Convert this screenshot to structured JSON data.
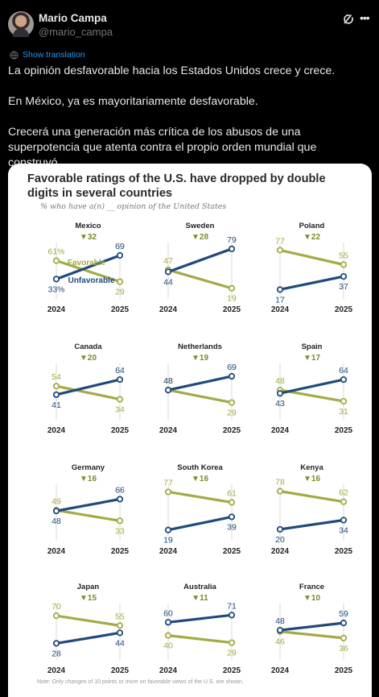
{
  "tweet": {
    "author_name": "Mario Campa",
    "author_handle": "@mario_campa",
    "translate_label": "Show translation",
    "paragraphs": [
      "La opinión desfavorable hacia los Estados Unidos crece y crece.",
      "En México, ya es mayoritariamente desfavorable.",
      "Crecerá una generación más crítica de los abusos de una superpotencia que atenta contra el propio orden mundial que construyó."
    ]
  },
  "icons": {
    "grok": "grok-icon",
    "more": "more-icon",
    "translate": "globe-icon"
  },
  "colors": {
    "favorable": "#1f4a7c",
    "unfavorable": "#a4ab45",
    "drop_marker": "#7d8a2c",
    "link": "#1d9bf0"
  },
  "chart_data": {
    "type": "line",
    "title": "Favorable ratings of the U.S. have dropped by double digits in several countries",
    "subtitle": "% who have a(n) __ opinion of the United States",
    "x": [
      "2024",
      "2025"
    ],
    "series_labels": {
      "favorable": "Favorable",
      "unfavorable": "Unfavorable"
    },
    "panels": [
      {
        "country": "Mexico",
        "drop": "▼32",
        "favorable": [
          61,
          29
        ],
        "unfavorable": [
          33,
          69
        ],
        "fav_first_label": "61%",
        "unfav_first_label": "33%"
      },
      {
        "country": "Sweden",
        "drop": "▼28",
        "favorable": [
          47,
          19
        ],
        "unfavorable": [
          44,
          79
        ]
      },
      {
        "country": "Poland",
        "drop": "▼22",
        "favorable": [
          77,
          55
        ],
        "unfavorable": [
          17,
          37
        ]
      },
      {
        "country": "Canada",
        "drop": "▼20",
        "favorable": [
          54,
          34
        ],
        "unfavorable": [
          41,
          64
        ]
      },
      {
        "country": "Netherlands",
        "drop": "▼19",
        "favorable": [
          48,
          29
        ],
        "unfavorable": [
          48,
          69
        ]
      },
      {
        "country": "Spain",
        "drop": "▼17",
        "favorable": [
          48,
          31
        ],
        "unfavorable": [
          43,
          64
        ]
      },
      {
        "country": "Germany",
        "drop": "▼16",
        "favorable": [
          49,
          33
        ],
        "unfavorable": [
          48,
          66
        ]
      },
      {
        "country": "South Korea",
        "drop": "▼16",
        "favorable": [
          77,
          61
        ],
        "unfavorable": [
          19,
          39
        ]
      },
      {
        "country": "Kenya",
        "drop": "▼16",
        "favorable": [
          78,
          62
        ],
        "unfavorable": [
          20,
          34
        ]
      },
      {
        "country": "Japan",
        "drop": "▼15",
        "favorable": [
          70,
          55
        ],
        "unfavorable": [
          28,
          44
        ]
      },
      {
        "country": "Australia",
        "drop": "▼11",
        "favorable": [
          40,
          29
        ],
        "unfavorable": [
          60,
          71
        ]
      },
      {
        "country": "France",
        "drop": "▼10",
        "favorable": [
          46,
          36
        ],
        "unfavorable": [
          48,
          59
        ]
      }
    ],
    "note": "Note: Only changes of 10 points or more on favorable views of the U.S. are shown."
  }
}
